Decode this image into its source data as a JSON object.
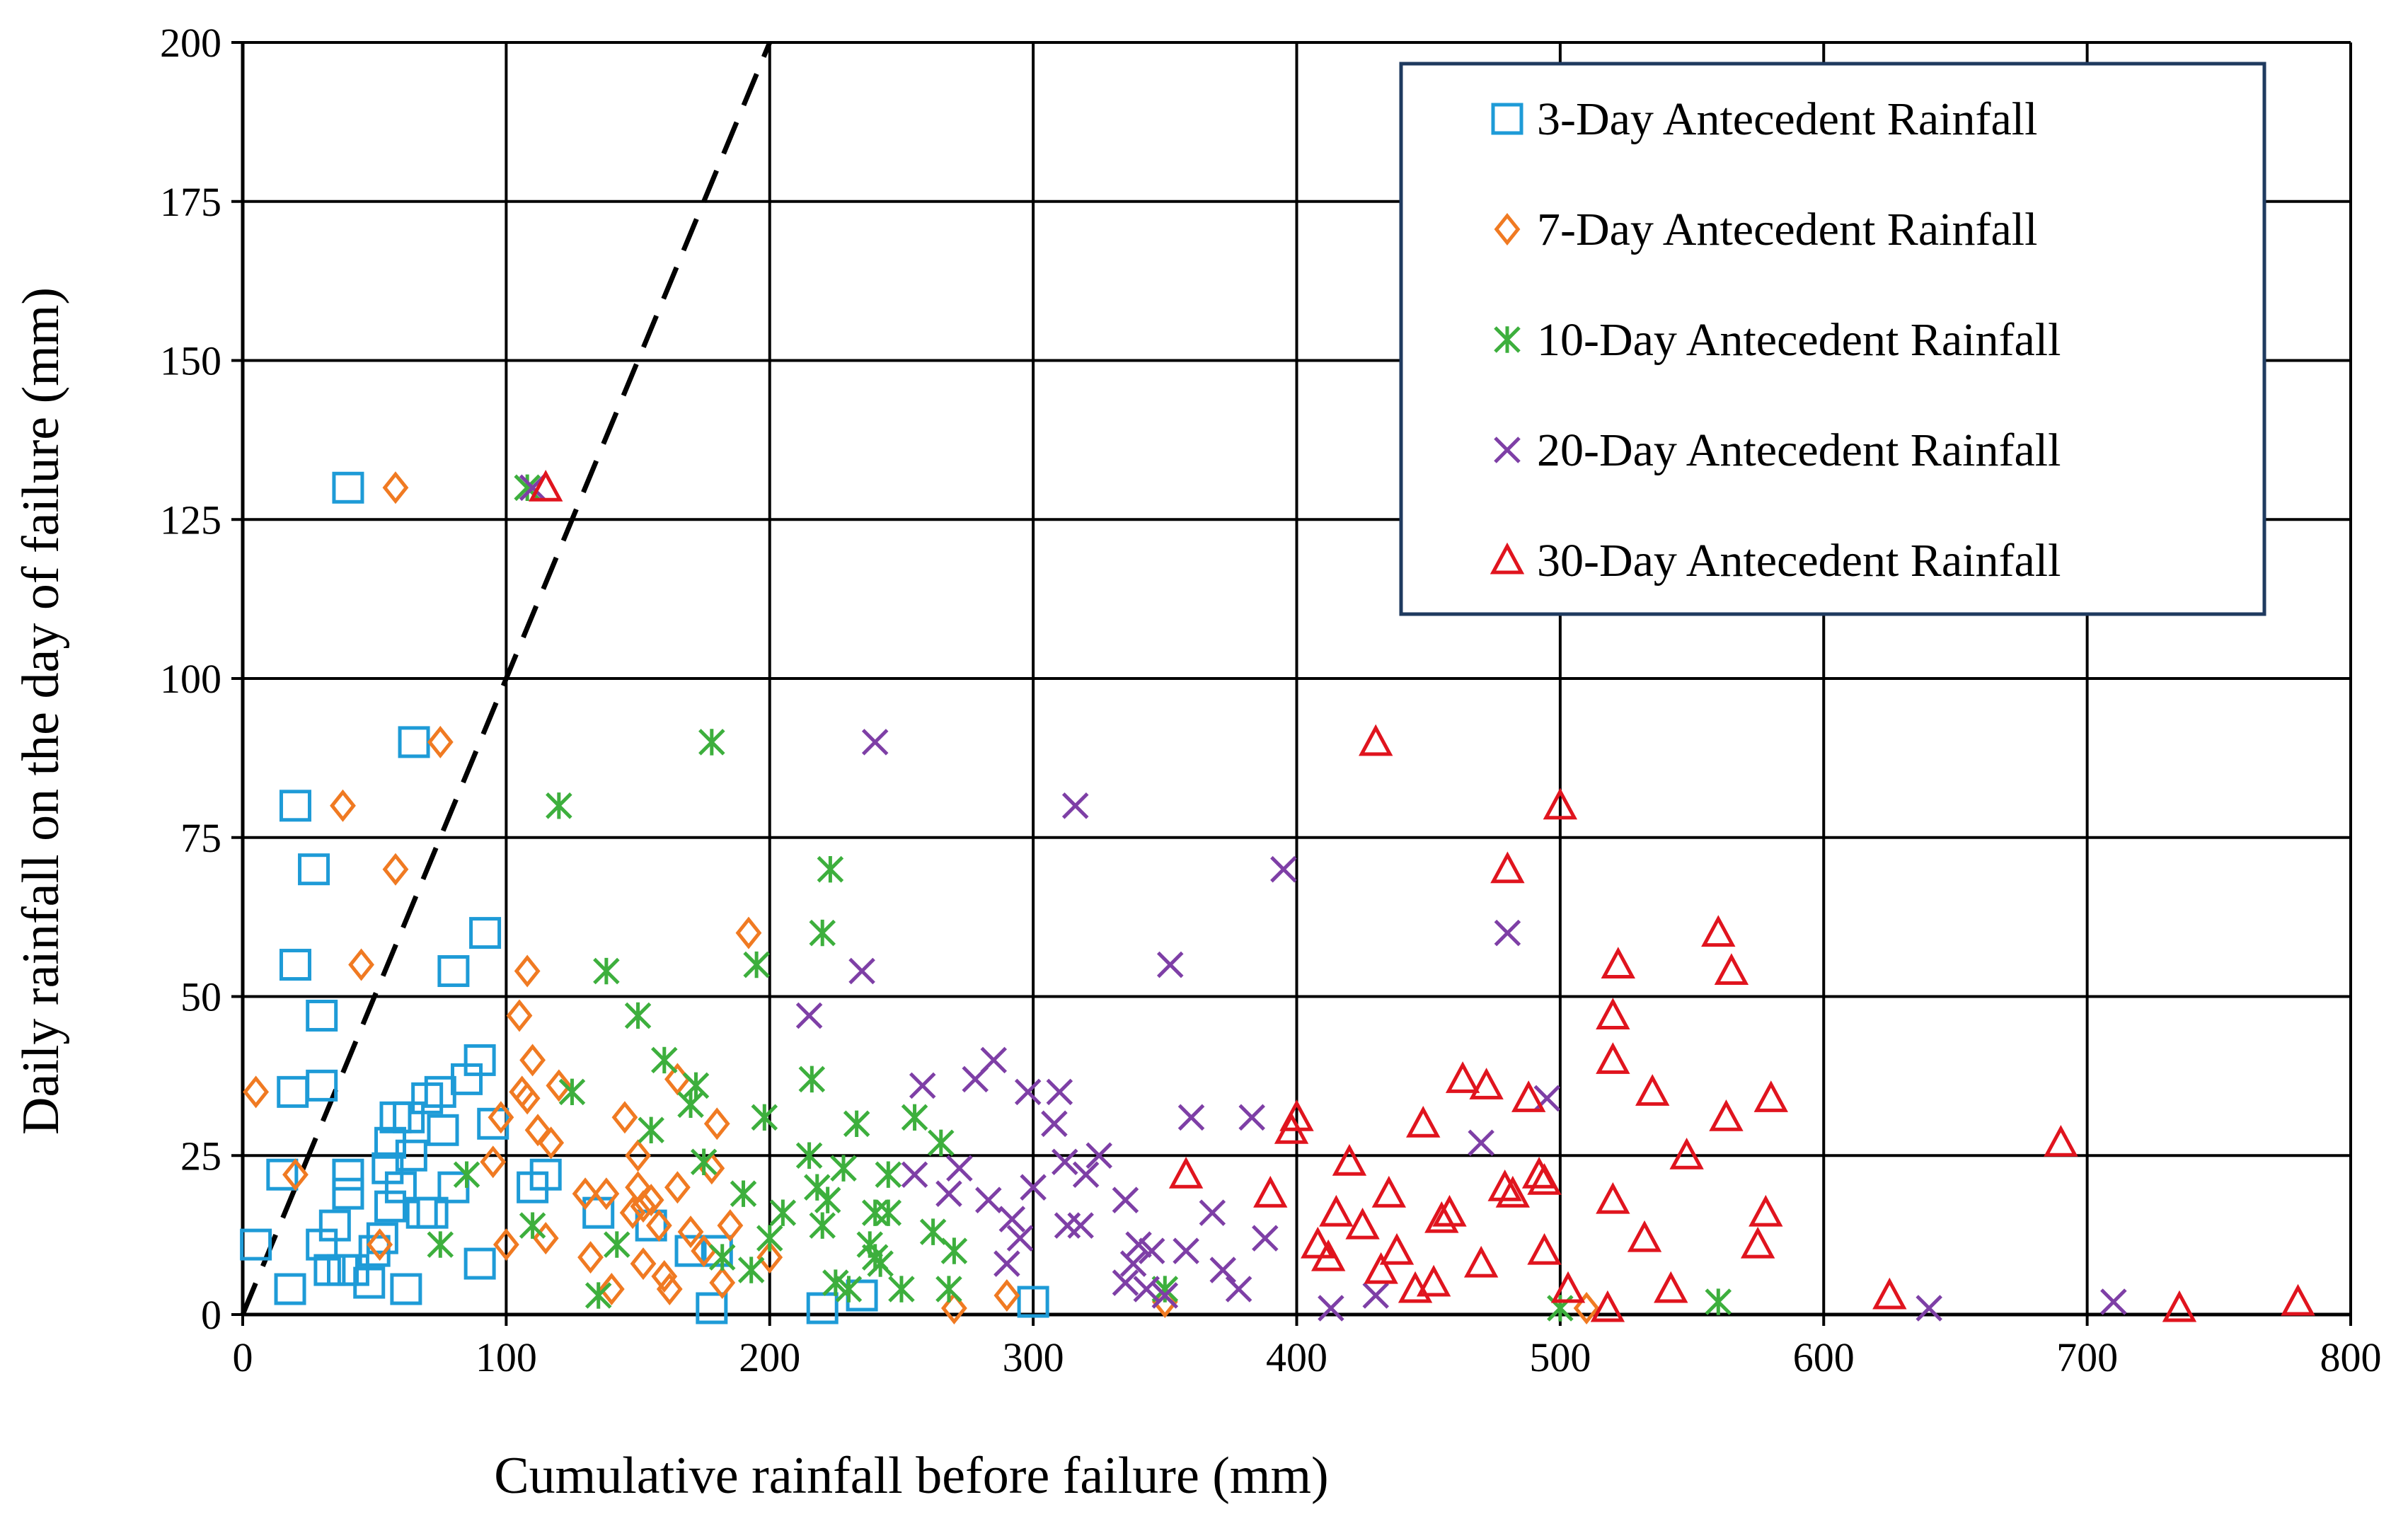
{
  "chart_data": {
    "type": "scatter",
    "title": "",
    "xlabel": "Cumulative rainfall before failure (mm)",
    "ylabel": "Daily rainfall on the day of failure (mm)",
    "xlim": [
      0,
      800
    ],
    "ylim": [
      0,
      200
    ],
    "x_ticks": [
      "0",
      "100",
      "200",
      "300",
      "400",
      "500",
      "600",
      "700",
      "800"
    ],
    "y_ticks": [
      "0",
      "25",
      "50",
      "75",
      "100",
      "125",
      "150",
      "175",
      "200"
    ],
    "grid": true,
    "legend_position": "top-right",
    "reference_line": {
      "style": "dashed",
      "color": "#000000",
      "points": [
        [
          0,
          0
        ],
        [
          200,
          200
        ]
      ]
    },
    "series": [
      {
        "name": "3-Day Antecedent Rainfall",
        "marker": "square",
        "color": "#1E9BD7",
        "points": [
          [
            5,
            11
          ],
          [
            15,
            22
          ],
          [
            18,
            4
          ],
          [
            19,
            35
          ],
          [
            20,
            80
          ],
          [
            20,
            55
          ],
          [
            27,
            70
          ],
          [
            30,
            47
          ],
          [
            30,
            36
          ],
          [
            30,
            11
          ],
          [
            33,
            7
          ],
          [
            35,
            14
          ],
          [
            38,
            7
          ],
          [
            40,
            130
          ],
          [
            40,
            22
          ],
          [
            40,
            19
          ],
          [
            42,
            7
          ],
          [
            48,
            5
          ],
          [
            50,
            10
          ],
          [
            53,
            12
          ],
          [
            55,
            23
          ],
          [
            56,
            27
          ],
          [
            56,
            17
          ],
          [
            58,
            31
          ],
          [
            60,
            20
          ],
          [
            62,
            4
          ],
          [
            63,
            31
          ],
          [
            64,
            25
          ],
          [
            65,
            90
          ],
          [
            68,
            16
          ],
          [
            70,
            34
          ],
          [
            72,
            16
          ],
          [
            75,
            35
          ],
          [
            76,
            29
          ],
          [
            80,
            54
          ],
          [
            80,
            20
          ],
          [
            85,
            37
          ],
          [
            90,
            40
          ],
          [
            90,
            8
          ],
          [
            92,
            60
          ],
          [
            95,
            30
          ],
          [
            110,
            20
          ],
          [
            115,
            22
          ],
          [
            135,
            16
          ],
          [
            155,
            14
          ],
          [
            170,
            10
          ],
          [
            178,
            1
          ],
          [
            180,
            10
          ],
          [
            220,
            1
          ],
          [
            235,
            3
          ],
          [
            300,
            2
          ]
        ]
      },
      {
        "name": "7-Day Antecedent Rainfall",
        "marker": "diamond",
        "color": "#F07A22",
        "points": [
          [
            5,
            35
          ],
          [
            20,
            22
          ],
          [
            38,
            80
          ],
          [
            45,
            55
          ],
          [
            52,
            11
          ],
          [
            58,
            70
          ],
          [
            58,
            130
          ],
          [
            75,
            90
          ],
          [
            95,
            24
          ],
          [
            98,
            31
          ],
          [
            100,
            11
          ],
          [
            105,
            47
          ],
          [
            106,
            35
          ],
          [
            108,
            54
          ],
          [
            108,
            34
          ],
          [
            110,
            40
          ],
          [
            112,
            29
          ],
          [
            115,
            12
          ],
          [
            117,
            27
          ],
          [
            120,
            36
          ],
          [
            130,
            19
          ],
          [
            132,
            9
          ],
          [
            138,
            19
          ],
          [
            140,
            4
          ],
          [
            145,
            31
          ],
          [
            148,
            16
          ],
          [
            150,
            25
          ],
          [
            150,
            20
          ],
          [
            152,
            8
          ],
          [
            152,
            17
          ],
          [
            155,
            18
          ],
          [
            158,
            14
          ],
          [
            160,
            6
          ],
          [
            162,
            4
          ],
          [
            165,
            20
          ],
          [
            165,
            37
          ],
          [
            170,
            13
          ],
          [
            175,
            10
          ],
          [
            178,
            23
          ],
          [
            180,
            30
          ],
          [
            182,
            5
          ],
          [
            185,
            14
          ],
          [
            192,
            60
          ],
          [
            200,
            9
          ],
          [
            270,
            1
          ],
          [
            290,
            3
          ],
          [
            350,
            2
          ],
          [
            510,
            1
          ]
        ]
      },
      {
        "name": "10-Day Antecedent Rainfall",
        "marker": "asterisk",
        "color": "#3DAF3D",
        "points": [
          [
            75,
            11
          ],
          [
            85,
            22
          ],
          [
            108,
            130
          ],
          [
            110,
            14
          ],
          [
            120,
            80
          ],
          [
            125,
            35
          ],
          [
            135,
            3
          ],
          [
            138,
            54
          ],
          [
            142,
            11
          ],
          [
            150,
            47
          ],
          [
            155,
            29
          ],
          [
            160,
            40
          ],
          [
            170,
            33
          ],
          [
            172,
            36
          ],
          [
            175,
            24
          ],
          [
            178,
            90
          ],
          [
            182,
            9
          ],
          [
            190,
            19
          ],
          [
            193,
            7
          ],
          [
            195,
            55
          ],
          [
            198,
            31
          ],
          [
            200,
            12
          ],
          [
            205,
            16
          ],
          [
            215,
            25
          ],
          [
            216,
            37
          ],
          [
            218,
            20
          ],
          [
            220,
            14
          ],
          [
            220,
            60
          ],
          [
            222,
            18
          ],
          [
            223,
            70
          ],
          [
            225,
            5
          ],
          [
            228,
            23
          ],
          [
            230,
            4
          ],
          [
            233,
            30
          ],
          [
            238,
            11
          ],
          [
            240,
            16
          ],
          [
            240,
            9
          ],
          [
            242,
            8
          ],
          [
            245,
            22
          ],
          [
            245,
            16
          ],
          [
            250,
            4
          ],
          [
            255,
            31
          ],
          [
            262,
            13
          ],
          [
            265,
            27
          ],
          [
            268,
            4
          ],
          [
            270,
            10
          ],
          [
            350,
            4
          ],
          [
            500,
            1
          ],
          [
            560,
            2
          ]
        ]
      },
      {
        "name": "20-Day Antecedent Rainfall",
        "marker": "x",
        "color": "#7E3FA6",
        "points": [
          [
            110,
            130
          ],
          [
            215,
            47
          ],
          [
            235,
            54
          ],
          [
            240,
            90
          ],
          [
            255,
            22
          ],
          [
            258,
            36
          ],
          [
            268,
            19
          ],
          [
            272,
            23
          ],
          [
            278,
            37
          ],
          [
            283,
            18
          ],
          [
            285,
            40
          ],
          [
            290,
            8
          ],
          [
            292,
            15
          ],
          [
            295,
            12
          ],
          [
            298,
            35
          ],
          [
            300,
            20
          ],
          [
            308,
            30
          ],
          [
            310,
            35
          ],
          [
            312,
            24
          ],
          [
            313,
            14
          ],
          [
            316,
            80
          ],
          [
            318,
            14
          ],
          [
            320,
            22
          ],
          [
            325,
            25
          ],
          [
            335,
            18
          ],
          [
            335,
            5
          ],
          [
            338,
            8
          ],
          [
            340,
            11
          ],
          [
            343,
            4
          ],
          [
            345,
            10
          ],
          [
            350,
            3
          ],
          [
            352,
            55
          ],
          [
            358,
            10
          ],
          [
            360,
            31
          ],
          [
            368,
            16
          ],
          [
            372,
            7
          ],
          [
            378,
            4
          ],
          [
            383,
            31
          ],
          [
            388,
            12
          ],
          [
            395,
            70
          ],
          [
            413,
            1
          ],
          [
            430,
            3
          ],
          [
            470,
            27
          ],
          [
            480,
            60
          ],
          [
            495,
            34
          ],
          [
            640,
            1
          ],
          [
            710,
            2
          ]
        ]
      },
      {
        "name": "30-Day Antecedent Rainfall",
        "marker": "triangle",
        "color": "#E0141E",
        "points": [
          [
            115,
            130
          ],
          [
            358,
            22
          ],
          [
            390,
            19
          ],
          [
            398,
            29
          ],
          [
            400,
            31
          ],
          [
            408,
            11
          ],
          [
            412,
            9
          ],
          [
            415,
            16
          ],
          [
            420,
            24
          ],
          [
            425,
            14
          ],
          [
            430,
            90
          ],
          [
            432,
            7
          ],
          [
            435,
            19
          ],
          [
            438,
            10
          ],
          [
            445,
            4
          ],
          [
            448,
            30
          ],
          [
            452,
            5
          ],
          [
            455,
            15
          ],
          [
            458,
            16
          ],
          [
            463,
            37
          ],
          [
            470,
            8
          ],
          [
            472,
            36
          ],
          [
            479,
            20
          ],
          [
            480,
            70
          ],
          [
            482,
            19
          ],
          [
            488,
            34
          ],
          [
            492,
            22
          ],
          [
            494,
            10
          ],
          [
            494,
            21
          ],
          [
            500,
            80
          ],
          [
            503,
            4
          ],
          [
            518,
            1
          ],
          [
            520,
            18
          ],
          [
            520,
            40
          ],
          [
            520,
            47
          ],
          [
            522,
            55
          ],
          [
            532,
            12
          ],
          [
            535,
            35
          ],
          [
            542,
            4
          ],
          [
            548,
            25
          ],
          [
            560,
            60
          ],
          [
            563,
            31
          ],
          [
            565,
            54
          ],
          [
            575,
            11
          ],
          [
            578,
            16
          ],
          [
            580,
            34
          ],
          [
            625,
            3
          ],
          [
            690,
            27
          ],
          [
            735,
            1
          ],
          [
            780,
            2
          ]
        ]
      }
    ]
  }
}
